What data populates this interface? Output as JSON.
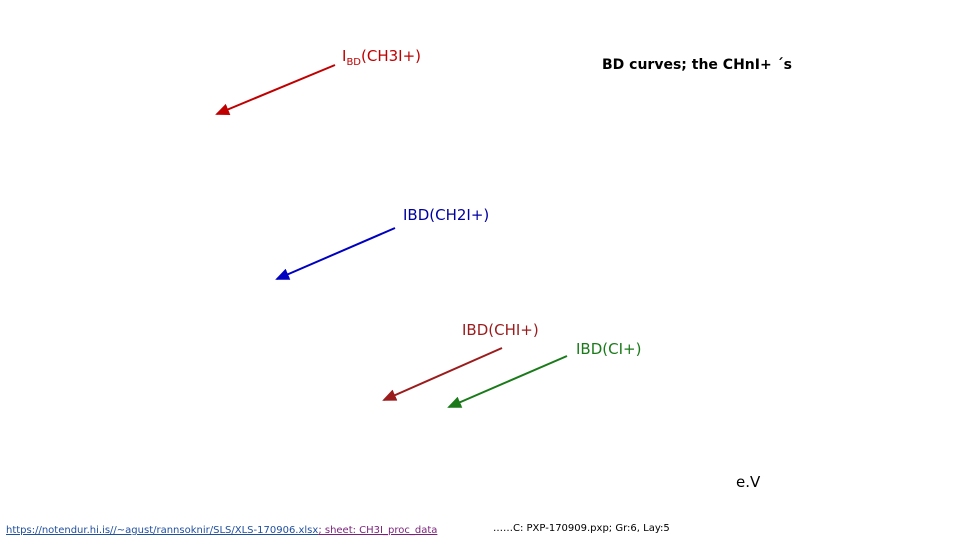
{
  "title": "BD curves; the CHnI+ ´s",
  "labels": {
    "ch3i": {
      "main": "I",
      "subscript": "BD",
      "rest": "(CH3I+)"
    },
    "ch2i": "IBD(CH2I+)",
    "chi": "IBD(CHI+)",
    "ci": "IBD(CI+)"
  },
  "axis_label": "e.V",
  "footer": {
    "link": "https://notendur.hi.is//~agust/rannsoknir/SLS/XLS-170906.xlsx",
    "sheet": "; sheet: CH3I_proc_data",
    "source": "……C: PXP-170909.pxp; Gr:6, Lay:5"
  }
}
